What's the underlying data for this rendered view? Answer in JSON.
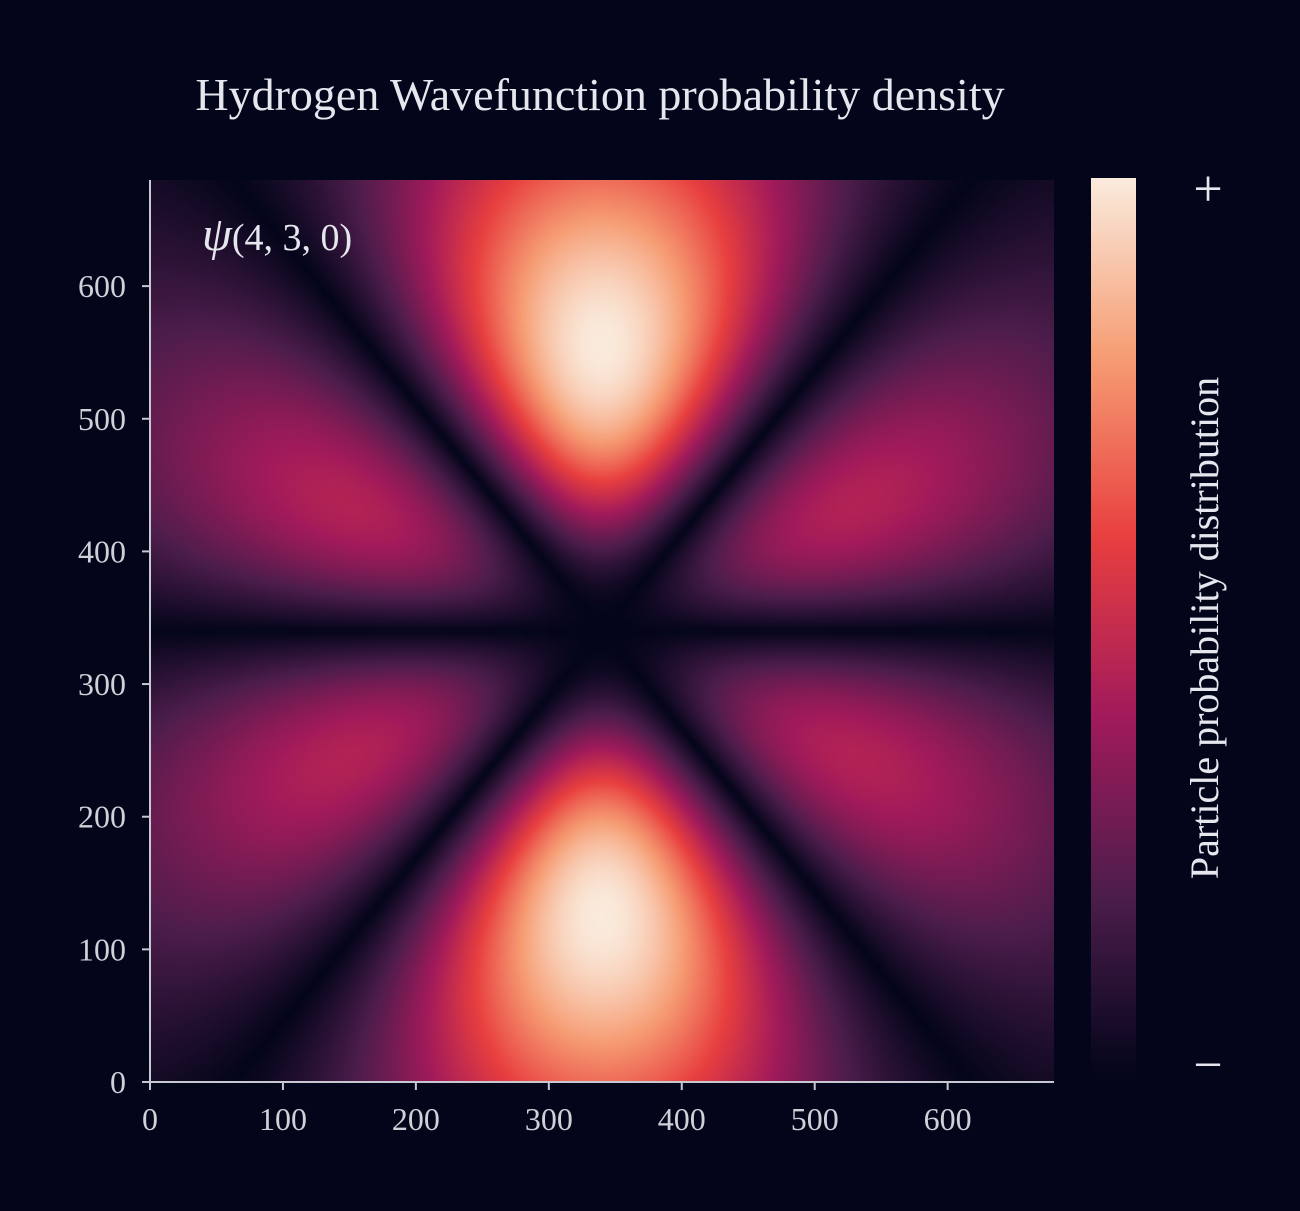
{
  "chart_data": {
    "type": "heatmap",
    "title": "Hydrogen Wavefunction probability density",
    "annotation": {
      "symbol": "ψ",
      "quantum_numbers": "(4, 3, 0)"
    },
    "xlabel": "",
    "ylabel": "",
    "xlim": [
      0,
      680
    ],
    "ylim": [
      0,
      680
    ],
    "x_ticks": [
      "0",
      "100",
      "200",
      "300",
      "400",
      "500",
      "600"
    ],
    "y_ticks": [
      "0",
      "100",
      "200",
      "300",
      "400",
      "500",
      "600"
    ],
    "grid": false,
    "orbital": {
      "n": 4,
      "l": 3,
      "m": 0,
      "center": [
        340,
        340
      ]
    },
    "colorbar": {
      "label": "Particle probability distribution",
      "max_label": "+",
      "min_label": "−",
      "colormap": "rocket",
      "colors": [
        "#03051a",
        "#4c1d4b",
        "#a11a5b",
        "#e83f3f",
        "#f69c73",
        "#faebdd"
      ]
    }
  }
}
